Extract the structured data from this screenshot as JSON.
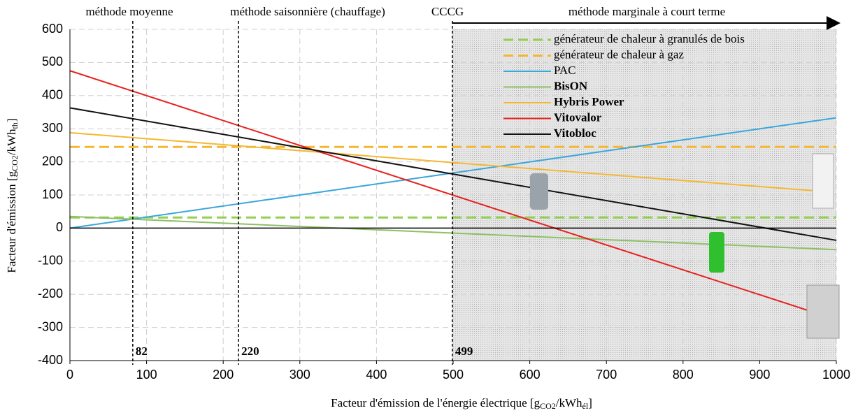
{
  "chart_data": {
    "type": "line",
    "x_label": {
      "main": "Facteur d'émission de l'énergie électrique  [g",
      "sub1": "CO2",
      "mid": "/kWh",
      "sub2": "él",
      "end": "]"
    },
    "y_label": {
      "main": "Facteur d'émission [g",
      "sub1": "CO2",
      "mid": "/kWh",
      "sub2": "th",
      "end": "]"
    },
    "xlim": [
      0,
      1000
    ],
    "xticks": [
      0,
      100,
      200,
      300,
      400,
      500,
      600,
      700,
      800,
      900,
      1000
    ],
    "ylim": [
      -400,
      600
    ],
    "yticks": [
      -400,
      -300,
      -200,
      -100,
      0,
      100,
      200,
      300,
      400,
      500,
      600
    ],
    "grid": true,
    "legend": "upper right",
    "annotations": [
      "méthode moyenne",
      "méthode saisonnière (chauffage)",
      "CCCG",
      "méthode marginale à court terme"
    ],
    "markers": [
      82,
      220,
      499
    ],
    "shaded_from": 499,
    "series": [
      {
        "name": "générateur de chaleur à granulés de bois",
        "color": "#92d050",
        "dashed": true,
        "bold": false,
        "x": [
          0,
          1000
        ],
        "values": [
          32,
          32
        ]
      },
      {
        "name": "générateur de chaleur à gaz",
        "color": "#f5b731",
        "dashed": true,
        "bold": false,
        "x": [
          0,
          1000
        ],
        "values": [
          245,
          245
        ]
      },
      {
        "name": "PAC",
        "color": "#3aa6dc",
        "dashed": false,
        "bold": false,
        "x": [
          0,
          1000
        ],
        "values": [
          0,
          333
        ]
      },
      {
        "name": "BisON",
        "color": "#8cc063",
        "dashed": false,
        "bold": true,
        "x": [
          0,
          1000
        ],
        "values": [
          35,
          -65
        ]
      },
      {
        "name": "Hybris Power",
        "color": "#f5b731",
        "dashed": false,
        "bold": true,
        "x": [
          0,
          970
        ],
        "values": [
          288,
          113
        ]
      },
      {
        "name": " Vitovalor",
        "color": "#e8211d",
        "dashed": false,
        "bold": true,
        "x": [
          0,
          965
        ],
        "values": [
          475,
          -250
        ]
      },
      {
        "name": " Vitobloc",
        "color": "#111111",
        "dashed": false,
        "bold": true,
        "x": [
          0,
          1000
        ],
        "values": [
          363,
          -37
        ]
      }
    ]
  }
}
